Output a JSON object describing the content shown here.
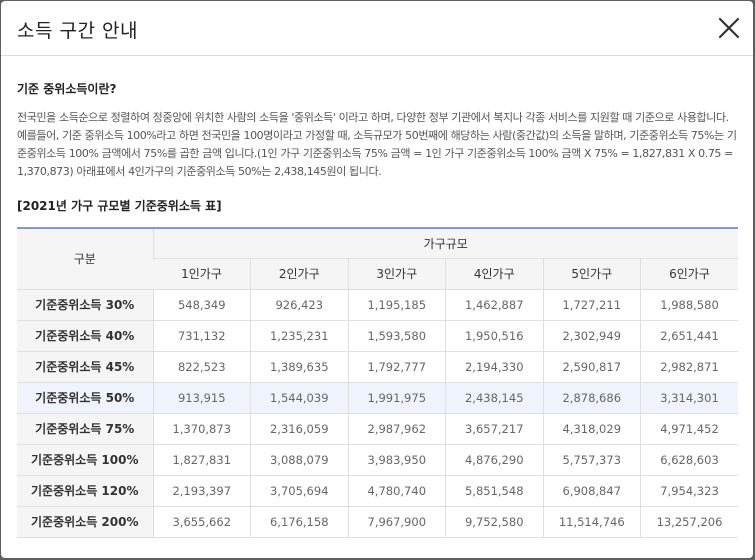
{
  "modal": {
    "title": "소득 구간 안내",
    "close_icon": "close-icon"
  },
  "section": {
    "heading": "기준 중위소득이란?",
    "description": "전국민을 소득순으로 정렬하여 정중앙에 위치한 사람의 소득을 '중위소득' 이라고 하며, 다양한 정부 기관에서 복지나 각종 서비스를 지원할 때 기준으로 사용합니다. 예를들어, 기준 중위소득 100%라고 하면 전국민을 100명이라고 가정할 때, 소득규모가 50번째에 해당하는 사람(중간값)의 소득을 말하며, 기준중위소득 75%는 기준중위소득 100% 금액에서 75%를 곱한 금액 입니다.(1인 가구 기준중위소득 75% 금액 = 1인 가구 기준중위소득 100% 금액 X 75% = 1,827,831 X 0.75 = 1,370,873) 아래표에서 4인가구의 기준중위소득 50%는 2,438,145원이 됩니다."
  },
  "table": {
    "title": "[2021년 가구 규모별 기준중위소득 표]",
    "row_header": "구분",
    "group_header": "가구규모",
    "columns": [
      "1인가구",
      "2인가구",
      "3인가구",
      "4인가구",
      "5인가구",
      "6인가구"
    ],
    "rows": [
      {
        "label": "기준중위소득 30%",
        "values": [
          "548,349",
          "926,423",
          "1,195,185",
          "1,462,887",
          "1,727,211",
          "1,988,580"
        ]
      },
      {
        "label": "기준중위소득 40%",
        "values": [
          "731,132",
          "1,235,231",
          "1,593,580",
          "1,950,516",
          "2,302,949",
          "2,651,441"
        ]
      },
      {
        "label": "기준중위소득 45%",
        "values": [
          "822,523",
          "1,389,635",
          "1,792,777",
          "2,194,330",
          "2,590,817",
          "2,982,871"
        ]
      },
      {
        "label": "기준중위소득 50%",
        "values": [
          "913,915",
          "1,544,039",
          "1,991,975",
          "2,438,145",
          "2,878,686",
          "3,314,301"
        ],
        "highlighted": true
      },
      {
        "label": "기준중위소득 75%",
        "values": [
          "1,370,873",
          "2,316,059",
          "2,987,962",
          "3,657,217",
          "4,318,029",
          "4,971,452"
        ]
      },
      {
        "label": "기준중위소득 100%",
        "values": [
          "1,827,831",
          "3,088,079",
          "3,983,950",
          "4,876,290",
          "5,757,373",
          "6,628,603"
        ]
      },
      {
        "label": "기준중위소득 120%",
        "values": [
          "2,193,397",
          "3,705,694",
          "4,780,740",
          "5,851,548",
          "6,908,847",
          "7,954,323"
        ]
      },
      {
        "label": "기준중위소득 200%",
        "values": [
          "3,655,662",
          "6,176,158",
          "7,967,900",
          "9,752,580",
          "11,514,746",
          "13,257,206"
        ]
      }
    ],
    "highlight_color": "#eef3fc",
    "accent_color": "#8896c8"
  }
}
